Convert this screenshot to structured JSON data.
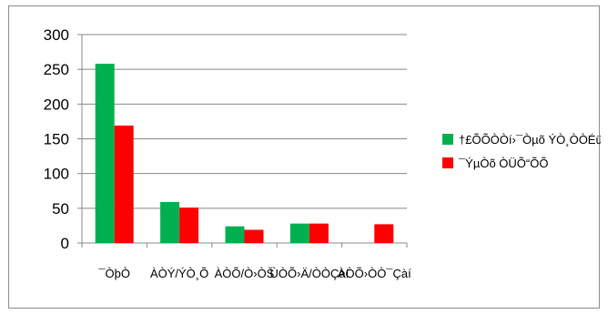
{
  "chart_data": {
    "type": "bar",
    "categories": [
      "¯ÒþÒ",
      "ÀÒÝ/ÝÒ¸Õ",
      "ÀÒÕ/Ò›ÒŠ",
      "ÙÒÕ›Ä/ÒÒÇàí",
      "ÀÒÕ›ÒÒ¯Çàí"
    ],
    "series": [
      {
        "name": "†£ÕÕÒÒí›¯Òµõ ÝÒ¸ÒÒÉü",
        "color": "#00b050",
        "values": [
          258,
          59,
          24,
          28,
          0
        ]
      },
      {
        "name": "¯ÝµÒõ ÒÜÕ“ÕÕ",
        "color": "#ff0000",
        "values": [
          169,
          51,
          19,
          28,
          27
        ]
      }
    ],
    "yticks": [
      0,
      50,
      100,
      150,
      200,
      250,
      300
    ],
    "ylim": [
      0,
      300
    ],
    "grid": true,
    "legend_position": "right",
    "title": "",
    "xlabel": "",
    "ylabel": ""
  }
}
